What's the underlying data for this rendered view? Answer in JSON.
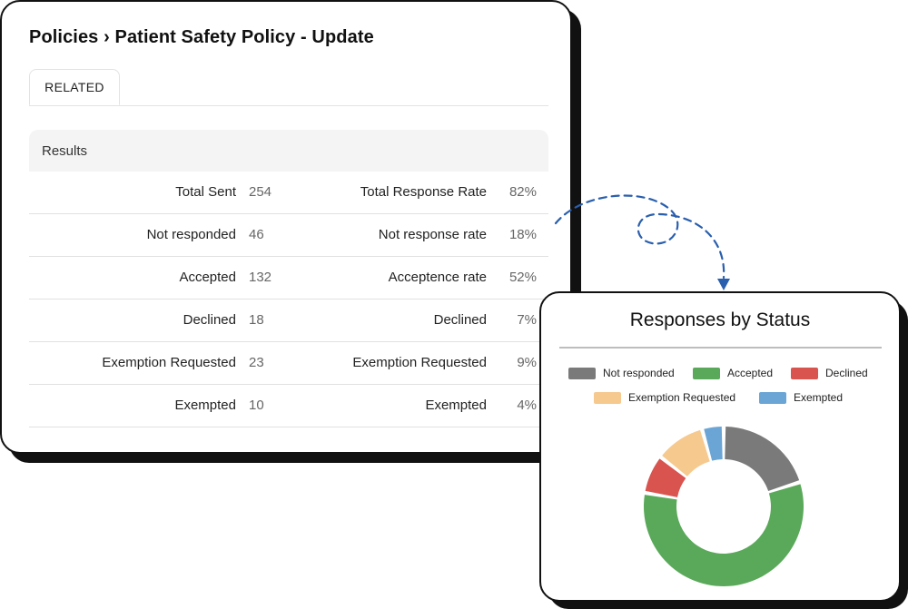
{
  "header": {
    "breadcrumb_parent": "Policies",
    "separator": "›",
    "page_title": "Patient Safety Policy - Update"
  },
  "tabs": [
    {
      "label": "RELATED",
      "active": true
    }
  ],
  "results": {
    "heading": "Results",
    "rows": [
      {
        "left_label": "Total Sent",
        "left_value": "254",
        "right_label": "Total Response Rate",
        "right_value": "82%"
      },
      {
        "left_label": "Not responded",
        "left_value": "46",
        "right_label": "Not response rate",
        "right_value": "18%"
      },
      {
        "left_label": "Accepted",
        "left_value": "132",
        "right_label": "Acceptence rate",
        "right_value": "52%"
      },
      {
        "left_label": "Declined",
        "left_value": "18",
        "right_label": "Declined",
        "right_value": "7%"
      },
      {
        "left_label": "Exemption Requested",
        "left_value": "23",
        "right_label": "Exemption Requested",
        "right_value": "9%"
      },
      {
        "left_label": "Exempted",
        "left_value": "10",
        "right_label": "Exempted",
        "right_value": "4%"
      }
    ]
  },
  "chart_data": {
    "type": "pie",
    "variant": "donut",
    "title": "Responses by Status",
    "legend_position": "top",
    "categories": [
      "Not responded",
      "Accepted",
      "Declined",
      "Exemption Requested",
      "Exempted"
    ],
    "values": [
      46,
      132,
      18,
      23,
      10
    ],
    "colors": [
      "#7a7a7a",
      "#5aa95a",
      "#d9534f",
      "#f6c98e",
      "#6aa5d6"
    ]
  },
  "icons": {
    "connector": "dashed-curved-arrow-icon"
  },
  "colors": {
    "card_border": "#111111",
    "connector": "#2a5fae",
    "results_header_bg": "#f4f4f4"
  }
}
